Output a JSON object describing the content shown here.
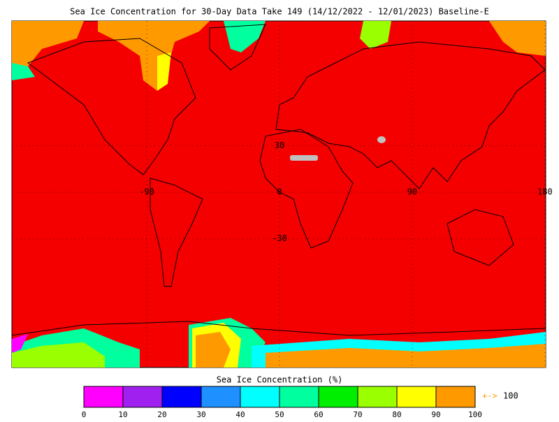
{
  "header": {
    "title": "Sea Ice Concentration for 30-Day Data Take 149 (14/12/2022 - 12/01/2023) Baseline-E"
  },
  "map": {
    "lat_labels": [
      30,
      0,
      -30
    ],
    "lon_labels": [
      -90,
      0,
      90,
      180
    ]
  },
  "colorbar": {
    "title": "Sea Ice Concentration (%)",
    "ticks": [
      0,
      10,
      20,
      30,
      40,
      50,
      60,
      70,
      80,
      90,
      100
    ],
    "colors": [
      "#ff00ff",
      "#a020f0",
      "#0000ff",
      "#1e90ff",
      "#00ffff",
      "#00ff9f",
      "#00ee00",
      "#9aff00",
      "#ffff00",
      "#ff9900"
    ],
    "overflow_arrow": "+->",
    "overflow_label": "100"
  }
}
